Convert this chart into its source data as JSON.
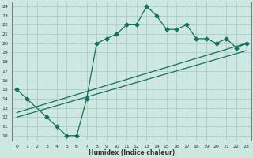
{
  "title": "",
  "xlabel": "Humidex (Indice chaleur)",
  "ylabel": "",
  "bg_color": "#cce8e0",
  "grid_color": "#aacccc",
  "line_color": "#1a6e60",
  "xlim": [
    -0.5,
    23.5
  ],
  "ylim": [
    9.5,
    24.5
  ],
  "xticks": [
    0,
    1,
    2,
    3,
    4,
    5,
    6,
    7,
    8,
    9,
    10,
    11,
    12,
    13,
    14,
    15,
    16,
    17,
    18,
    19,
    20,
    21,
    22,
    23
  ],
  "yticks": [
    10,
    11,
    12,
    13,
    14,
    15,
    16,
    17,
    18,
    19,
    20,
    21,
    22,
    23,
    24
  ],
  "curve1_x": [
    0,
    1,
    3,
    4,
    5,
    6,
    7,
    8,
    9,
    10,
    11,
    12,
    13,
    14,
    15,
    16,
    17,
    18,
    19,
    20,
    21,
    22,
    23
  ],
  "curve1_y": [
    15,
    14,
    12,
    11,
    10,
    10,
    14,
    20,
    20.5,
    21,
    22,
    22,
    24,
    23,
    21.5,
    21.5,
    22,
    20.5,
    20.5,
    20,
    20.5,
    19.5,
    20
  ],
  "line2_x": [
    0,
    23
  ],
  "line2_y": [
    12.5,
    20.0
  ],
  "line3_x": [
    0,
    23
  ],
  "line3_y": [
    12.0,
    19.2
  ],
  "marker": "D",
  "markersize": 2.5,
  "linewidth": 0.9,
  "tick_fontsize": 4.5,
  "xlabel_fontsize": 5.5
}
